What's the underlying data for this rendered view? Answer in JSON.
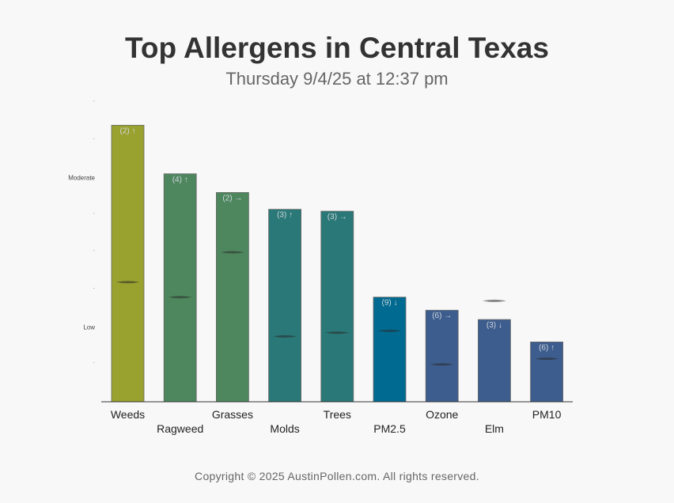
{
  "header": {
    "title": "Top Allergens in Central Texas",
    "subtitle": "Thursday 9/4/25 at 12:37 pm"
  },
  "footer": {
    "copyright": "Copyright © 2025 AustinPollen.com.  All rights reserved."
  },
  "chart_data": {
    "type": "bar",
    "title": "Top Allergens in Central Texas",
    "subtitle": "Thursday 9/4/25 at 12:37 pm",
    "categories": [
      "Weeds",
      "Ragweed",
      "Grasses",
      "Molds",
      "Trees",
      "PM2.5",
      "Ozone",
      "Elm",
      "PM10"
    ],
    "values": [
      7.4,
      6.1,
      5.6,
      5.15,
      5.1,
      2.8,
      2.45,
      2.2,
      1.6
    ],
    "markers": [
      3.2,
      2.8,
      4.0,
      1.75,
      1.85,
      1.9,
      1.0,
      2.7,
      1.15
    ],
    "labels": [
      "(2) ↑",
      "(4) ↑",
      "(2) →",
      "(3) ↑",
      "(3) →",
      "(9) ↓",
      "(6) →",
      "(3) ↓",
      "(6) ↑"
    ],
    "colors": [
      "#9aa22f",
      "#4e875e",
      "#4e875e",
      "#2a7877",
      "#2a7877",
      "#006a90",
      "#3d5d8e",
      "#3d5d8e",
      "#3d5d8e"
    ],
    "ylim": [
      0,
      8
    ],
    "y_tick_labels": [
      {
        "value": 8,
        "label": "-"
      },
      {
        "value": 7,
        "label": "-"
      },
      {
        "value": 6,
        "label": "Moderate"
      },
      {
        "value": 5,
        "label": "-"
      },
      {
        "value": 4,
        "label": "-"
      },
      {
        "value": 3,
        "label": "-"
      },
      {
        "value": 2,
        "label": "Low"
      },
      {
        "value": 1,
        "label": "-"
      }
    ],
    "xlabel": "",
    "ylabel": "",
    "grid": false,
    "legend": "none"
  }
}
